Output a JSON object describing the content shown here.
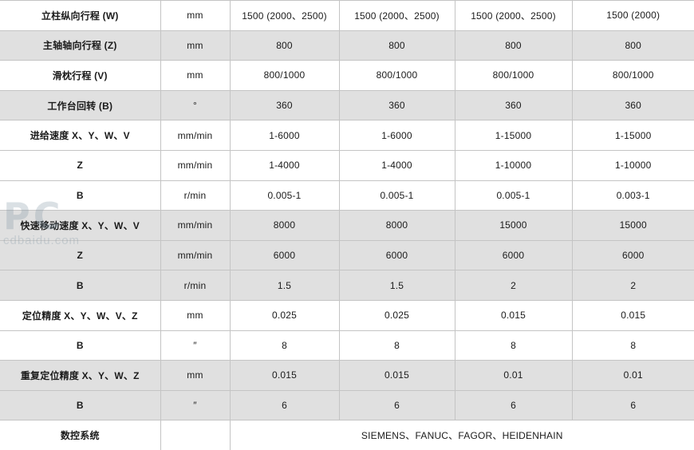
{
  "watermark": {
    "big": "PC",
    "text": "cdbaidu.com"
  },
  "colors": {
    "row_shaded": "#e0e0e0",
    "row_plain": "#ffffff",
    "grid_border": "#c4c4c4",
    "text": "#1b1b1b"
  },
  "table": {
    "columns": {
      "label_width": 201,
      "unit_width": 87,
      "value_widths": [
        137,
        145,
        147,
        153
      ]
    },
    "rows": [
      {
        "label": "立柱纵向行程 (W)",
        "indent": false,
        "unit": "mm",
        "values": [
          "1500 (2000、2500)",
          "1500 (2000、2500)",
          "1500 (2000、2500)",
          "1500 (2000)"
        ],
        "shaded": false
      },
      {
        "label": "主轴轴向行程 (Z)",
        "indent": false,
        "unit": "mm",
        "values": [
          "800",
          "800",
          "800",
          "800"
        ],
        "shaded": true
      },
      {
        "label": "滑枕行程 (V)",
        "indent": false,
        "unit": "mm",
        "values": [
          "800/1000",
          "800/1000",
          "800/1000",
          "800/1000"
        ],
        "shaded": false
      },
      {
        "label": "工作台回转 (B)",
        "indent": false,
        "unit": "°",
        "values": [
          "360",
          "360",
          "360",
          "360"
        ],
        "shaded": true
      },
      {
        "label": "进给速度 X、Y、W、V",
        "indent": false,
        "unit": "mm/min",
        "values": [
          "1-6000",
          "1-6000",
          "1-15000",
          "1-15000"
        ],
        "shaded": false
      },
      {
        "label": "Z",
        "indent": true,
        "unit": "mm/min",
        "values": [
          "1-4000",
          "1-4000",
          "1-10000",
          "1-10000"
        ],
        "shaded": false
      },
      {
        "label": "B",
        "indent": true,
        "unit": "r/min",
        "values": [
          "0.005-1",
          "0.005-1",
          "0.005-1",
          "0.003-1"
        ],
        "shaded": false
      },
      {
        "label": "快速移动速度 X、Y、W、V",
        "indent": false,
        "unit": "mm/min",
        "values": [
          "8000",
          "8000",
          "15000",
          "15000"
        ],
        "shaded": true
      },
      {
        "label": "Z",
        "indent": true,
        "unit": "mm/min",
        "values": [
          "6000",
          "6000",
          "6000",
          "6000"
        ],
        "shaded": true
      },
      {
        "label": "B",
        "indent": true,
        "unit": "r/min",
        "values": [
          "1.5",
          "1.5",
          "2",
          "2"
        ],
        "shaded": true
      },
      {
        "label": "定位精度 X、Y、W、V、Z",
        "indent": false,
        "unit": "mm",
        "values": [
          "0.025",
          "0.025",
          "0.015",
          "0.015"
        ],
        "shaded": false
      },
      {
        "label": "B",
        "indent": true,
        "unit": "″",
        "values": [
          "8",
          "8",
          "8",
          "8"
        ],
        "shaded": false
      },
      {
        "label": "重复定位精度 X、Y、W、Z",
        "indent": false,
        "unit": "mm",
        "values": [
          "0.015",
          "0.015",
          "0.01",
          "0.01"
        ],
        "shaded": true
      },
      {
        "label": "B",
        "indent": true,
        "unit": "″",
        "values": [
          "6",
          "6",
          "6",
          "6"
        ],
        "shaded": true
      },
      {
        "label": "数控系统",
        "indent": false,
        "unit": "",
        "merged_value": "SIEMENS、FANUC、FAGOR、HEIDENHAIN",
        "shaded": false
      }
    ]
  }
}
